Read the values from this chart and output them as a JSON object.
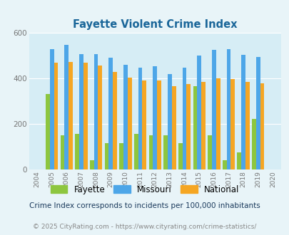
{
  "title": "Fayette Violent Crime Index",
  "years": [
    2004,
    2005,
    2006,
    2007,
    2008,
    2009,
    2010,
    2011,
    2012,
    2013,
    2014,
    2015,
    2016,
    2017,
    2018,
    2019,
    2020
  ],
  "fayette": [
    0,
    330,
    150,
    155,
    40,
    115,
    115,
    155,
    150,
    150,
    115,
    365,
    150,
    40,
    75,
    220,
    0
  ],
  "missouri": [
    0,
    530,
    548,
    508,
    508,
    492,
    458,
    448,
    452,
    420,
    448,
    500,
    525,
    528,
    502,
    495,
    0
  ],
  "national": [
    0,
    470,
    472,
    468,
    455,
    428,
    404,
    390,
    390,
    367,
    374,
    383,
    400,
    397,
    383,
    379,
    0
  ],
  "fayette_color": "#8dc63f",
  "missouri_color": "#4da6e8",
  "national_color": "#f5a623",
  "bg_color": "#e8f4f8",
  "plot_bg_color": "#d6edf5",
  "grid_color": "#ffffff",
  "ylabel_max": 600,
  "yticks": [
    0,
    200,
    400,
    600
  ],
  "subtitle": "Crime Index corresponds to incidents per 100,000 inhabitants",
  "footer": "© 2025 CityRating.com - https://www.cityrating.com/crime-statistics/",
  "title_color": "#1a6699",
  "subtitle_color": "#1a3a5c",
  "footer_color": "#888888",
  "tick_color": "#777777"
}
